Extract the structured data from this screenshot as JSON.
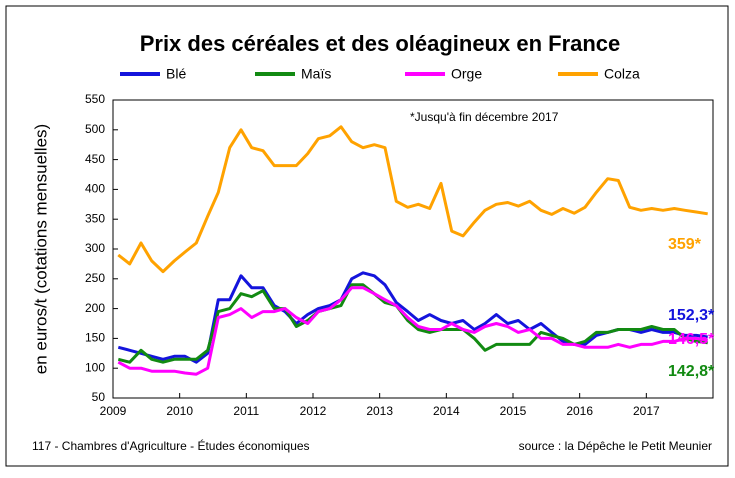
{
  "chart_data": {
    "type": "line",
    "title": "Prix des céréales et des oléagineux en France",
    "ylabel": "en euros/t (cotations mensuelles)",
    "annotation": "*Jusqu'à fin décembre 2017",
    "footer_left": "117 - Chambres d'Agriculture - Études économiques",
    "footer_right": "source :  la Dépêche le Petit Meunier",
    "xlim": [
      2009,
      2018
    ],
    "xticks": [
      2009,
      2010,
      2011,
      2012,
      2013,
      2014,
      2015,
      2016,
      2017
    ],
    "ylim": [
      50,
      550
    ],
    "yticks": [
      50,
      100,
      150,
      200,
      250,
      300,
      350,
      400,
      450,
      500,
      550
    ],
    "grid": false,
    "x": [
      2009.08,
      2009.25,
      2009.42,
      2009.58,
      2009.75,
      2009.92,
      2010.08,
      2010.25,
      2010.42,
      2010.58,
      2010.75,
      2010.92,
      2011.08,
      2011.25,
      2011.42,
      2011.58,
      2011.75,
      2011.92,
      2012.08,
      2012.25,
      2012.42,
      2012.58,
      2012.75,
      2012.92,
      2013.08,
      2013.25,
      2013.42,
      2013.58,
      2013.75,
      2013.92,
      2014.08,
      2014.25,
      2014.42,
      2014.58,
      2014.75,
      2014.92,
      2015.08,
      2015.25,
      2015.42,
      2015.58,
      2015.75,
      2015.92,
      2016.08,
      2016.25,
      2016.42,
      2016.58,
      2016.75,
      2016.92,
      2017.08,
      2017.25,
      2017.42,
      2017.58,
      2017.75,
      2017.92
    ],
    "series": [
      {
        "name": "Blé",
        "color": "#1414dc",
        "end_label": "152,3*",
        "values": [
          135,
          130,
          125,
          120,
          115,
          120,
          120,
          110,
          125,
          215,
          215,
          255,
          235,
          235,
          205,
          195,
          175,
          190,
          200,
          205,
          215,
          250,
          260,
          255,
          240,
          210,
          195,
          180,
          190,
          180,
          175,
          180,
          165,
          175,
          190,
          175,
          180,
          165,
          175,
          160,
          145,
          140,
          140,
          155,
          160,
          165,
          165,
          160,
          165,
          160,
          160,
          155,
          155,
          152.3
        ]
      },
      {
        "name": "Maïs",
        "color": "#128a12",
        "end_label": "142,8*",
        "values": [
          115,
          110,
          130,
          115,
          110,
          115,
          115,
          115,
          130,
          195,
          200,
          225,
          220,
          230,
          200,
          200,
          170,
          180,
          195,
          200,
          205,
          240,
          240,
          225,
          210,
          205,
          180,
          165,
          160,
          165,
          165,
          165,
          150,
          130,
          140,
          140,
          140,
          140,
          160,
          155,
          150,
          140,
          145,
          160,
          160,
          165,
          165,
          165,
          170,
          165,
          165,
          150,
          145,
          142.8
        ]
      },
      {
        "name": "Orge",
        "color": "#ff00ff",
        "end_label": "146,5*",
        "values": [
          110,
          100,
          100,
          95,
          95,
          95,
          92,
          90,
          100,
          185,
          190,
          200,
          185,
          195,
          195,
          200,
          185,
          175,
          195,
          200,
          215,
          235,
          235,
          225,
          215,
          205,
          185,
          170,
          165,
          165,
          175,
          165,
          160,
          170,
          175,
          170,
          160,
          165,
          150,
          150,
          140,
          140,
          135,
          135,
          135,
          140,
          135,
          140,
          140,
          145,
          145,
          150,
          150,
          146.5
        ]
      },
      {
        "name": "Colza",
        "color": "#ffa200",
        "end_label": "359*",
        "values": [
          290,
          275,
          310,
          280,
          262,
          280,
          295,
          310,
          355,
          395,
          470,
          500,
          470,
          465,
          440,
          440,
          440,
          460,
          485,
          490,
          505,
          480,
          470,
          475,
          470,
          380,
          370,
          375,
          368,
          410,
          330,
          322,
          345,
          365,
          375,
          378,
          372,
          380,
          365,
          358,
          368,
          360,
          370,
          395,
          418,
          415,
          370,
          365,
          368,
          365,
          368,
          365,
          362,
          359
        ]
      }
    ]
  }
}
